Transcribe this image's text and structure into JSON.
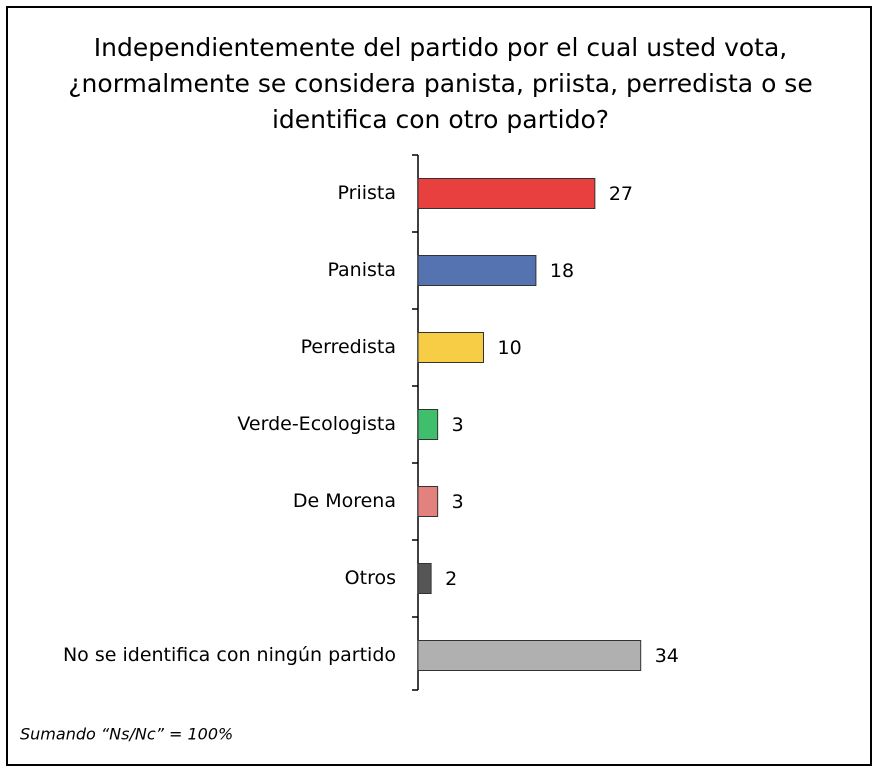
{
  "chart_data": {
    "type": "bar",
    "title": "Independientemente del partido por el cual usted vota, ¿normalmente se considera panista, priista, perredista o se identifica con otro partido?",
    "categories": [
      "Priista",
      "Panista",
      "Perredista",
      "Verde-Ecologista",
      "De Morena",
      "Otros",
      "No se identifica con ningún partido"
    ],
    "values": [
      27,
      18,
      10,
      3,
      3,
      2,
      34
    ],
    "colors": [
      "#e8403f",
      "#5473b0",
      "#f7cd45",
      "#3fbf6c",
      "#e3817f",
      "#555555",
      "#b0b0b0"
    ],
    "footnote": "Sumando “Ns/Nc” = 100%"
  }
}
